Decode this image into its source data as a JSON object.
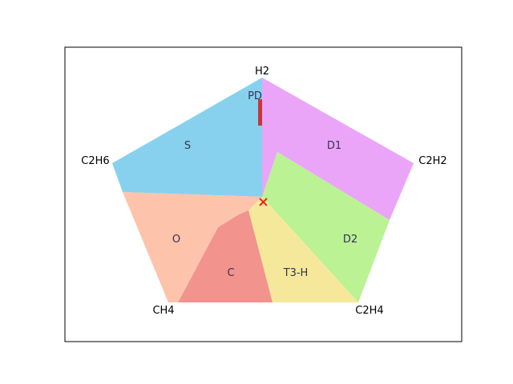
{
  "diagram": {
    "type": "duval-pentagon",
    "vertices": [
      {
        "key": "h2",
        "label": "H2"
      },
      {
        "key": "c2h2",
        "label": "C2H2"
      },
      {
        "key": "c2h4",
        "label": "C2H4"
      },
      {
        "key": "ch4",
        "label": "CH4"
      },
      {
        "key": "c2h6",
        "label": "C2H6"
      }
    ],
    "zones": [
      {
        "key": "pd",
        "label": "PD",
        "color": "#c8363a"
      },
      {
        "key": "d1",
        "label": "D1",
        "color": "#eaa5f8"
      },
      {
        "key": "d2",
        "label": "D2",
        "color": "#baf294"
      },
      {
        "key": "t3h",
        "label": "T3-H",
        "color": "#f6e89b"
      },
      {
        "key": "c",
        "label": "C",
        "color": "#f2938d"
      },
      {
        "key": "o",
        "label": "O",
        "color": "#fec3ab"
      },
      {
        "key": "s",
        "label": "S",
        "color": "#87d1ee"
      }
    ],
    "marker": {
      "symbol": "×",
      "color": "#e8251c"
    }
  }
}
